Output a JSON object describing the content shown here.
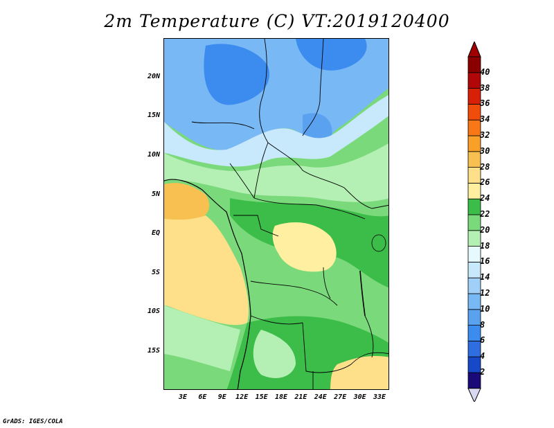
{
  "title": "2m Temperature (C) VT:2019120400",
  "credit": "GrADS: IGES/COLA",
  "lat_labels": [
    "20N",
    "15N",
    "10N",
    "5N",
    "EQ",
    "5S",
    "10S",
    "15S"
  ],
  "lon_labels": [
    "3E",
    "6E",
    "9E",
    "12E",
    "15E",
    "18E",
    "21E",
    "24E",
    "27E",
    "30E",
    "33E"
  ],
  "colorbar": {
    "levels": [
      "2",
      "4",
      "6",
      "8",
      "10",
      "12",
      "14",
      "16",
      "18",
      "20",
      "22",
      "24",
      "26",
      "28",
      "30",
      "32",
      "34",
      "36",
      "38",
      "40"
    ],
    "colors": [
      "#1a0a78",
      "#1648c8",
      "#2e6ee0",
      "#3c8cf0",
      "#5aa2f0",
      "#78b8f4",
      "#a0d0f8",
      "#c8e8fc",
      "#e6fafe",
      "#b4f0b4",
      "#7ad97a",
      "#3cbc48",
      "#fef0a0",
      "#fee08a",
      "#f8c050",
      "#f8a028",
      "#f87818",
      "#f04c0c",
      "#d82008",
      "#b00808",
      "#8a0000"
    ],
    "cap_low": "#d8d8f0",
    "cap_high": "#a00000"
  },
  "map": {
    "temperature_field_colors": {
      "sahara_north": "#5aa2f0",
      "sahel": "#c8e8fc",
      "savanna": "#b4f0b4",
      "forest": "#3cbc48",
      "congo_basin": "#fef0a0",
      "gulf_of_guinea": "#f8c050",
      "atlantic": "#fee08a"
    }
  }
}
